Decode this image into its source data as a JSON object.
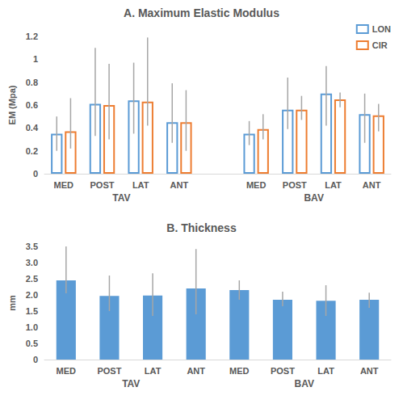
{
  "chart_data": [
    {
      "type": "bar",
      "title": "A. Maximum Elastic Modulus",
      "y_label": "EM (Mpa)",
      "categories": [
        "MED",
        "POST",
        "LAT",
        "ANT",
        null,
        "MED",
        "POST",
        "LAT",
        "ANT"
      ],
      "group_labels": [
        "TAV",
        "TAV",
        "TAV",
        "TAV",
        null,
        "BAV",
        "BAV",
        "BAV",
        "BAV"
      ],
      "series": [
        {
          "name": "LON",
          "color": "#5b9bd5",
          "marker": "hollow",
          "values": [
            0.35,
            0.61,
            0.64,
            0.45,
            null,
            0.35,
            0.56,
            0.7,
            0.52
          ],
          "error_range": [
            [
              0.2,
              0.5
            ],
            [
              0.33,
              1.1
            ],
            [
              0.35,
              0.97
            ],
            [
              0.27,
              0.79
            ],
            null,
            [
              0.25,
              0.46
            ],
            [
              0.39,
              0.84
            ],
            [
              0.42,
              0.94
            ],
            [
              0.27,
              0.7
            ]
          ]
        },
        {
          "name": "CIR",
          "color": "#ed7d31",
          "marker": "hollow",
          "values": [
            0.37,
            0.6,
            0.63,
            0.45,
            null,
            0.39,
            0.56,
            0.65,
            0.51
          ],
          "error_range": [
            [
              0.22,
              0.66
            ],
            [
              0.3,
              0.96
            ],
            [
              0.42,
              1.19
            ],
            [
              0.2,
              0.73
            ],
            null,
            [
              0.3,
              0.52
            ],
            [
              0.47,
              0.68
            ],
            [
              0.58,
              0.71
            ],
            [
              0.37,
              0.61
            ]
          ]
        }
      ],
      "ylim": [
        0,
        1.2
      ],
      "yticks": [
        0,
        0.2,
        0.4,
        0.6,
        0.8,
        1,
        1.2
      ],
      "grid": false,
      "legend": "top-right"
    },
    {
      "type": "bar",
      "title": "B. Thickness",
      "y_label": "mm",
      "categories": [
        "MED",
        "POST",
        "LAT",
        "ANT",
        "MED",
        "POST",
        "LAT",
        "ANT"
      ],
      "group_labels": [
        "TAV",
        "TAV",
        "TAV",
        "TAV",
        "BAV",
        "BAV",
        "BAV",
        "BAV"
      ],
      "color": "#5b9bd5",
      "values": [
        2.45,
        1.97,
        1.98,
        2.2,
        2.15,
        1.85,
        1.82,
        1.85
      ],
      "error_range": [
        [
          2.05,
          3.5
        ],
        [
          1.5,
          2.6
        ],
        [
          1.35,
          2.67
        ],
        [
          1.4,
          3.42
        ],
        [
          1.85,
          2.45
        ],
        [
          1.65,
          2.1
        ],
        [
          1.35,
          2.3
        ],
        [
          1.6,
          2.07
        ]
      ],
      "ylim": [
        0,
        3.5
      ],
      "yticks": [
        0,
        0.5,
        {
          "value": 1,
          "label": "1.0"
        },
        1.5,
        {
          "value": 2,
          "label": "2.0"
        },
        2.5,
        {
          "value": 3,
          "label": "3.0"
        },
        3.5
      ],
      "grid": false
    }
  ]
}
